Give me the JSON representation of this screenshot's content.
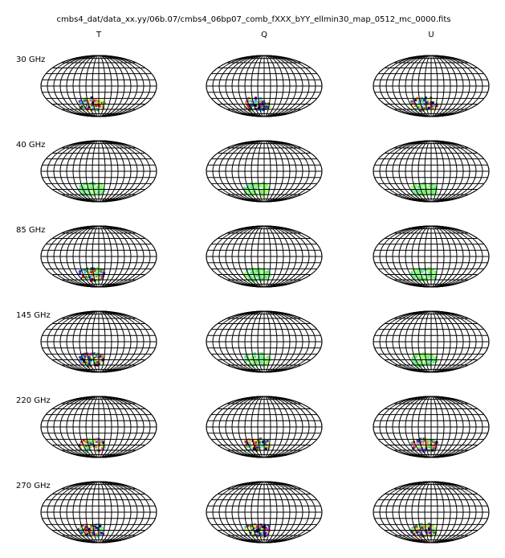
{
  "title": "cmbs4_dat/data_xx.yy/06b.07/cmbs4_06bp07_comb_fXXX_bYY_ellmin30_map_0512_mc_0000.fits",
  "columns": [
    "T",
    "Q",
    "U"
  ],
  "rows": [
    "30 GHz",
    "40 GHz",
    "85 GHz",
    "145 GHz",
    "220 GHz",
    "270 GHz"
  ]
}
